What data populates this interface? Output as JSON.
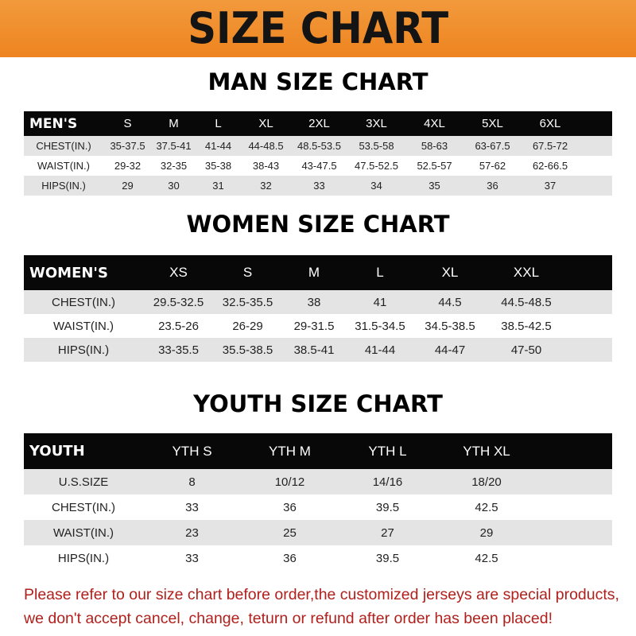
{
  "banner": {
    "title": "SIZE CHART",
    "color": "#ee8420"
  },
  "men": {
    "title": "MAN SIZE CHART",
    "header": [
      "MEN'S",
      "S",
      "M",
      "L",
      "XL",
      "2XL",
      "3XL",
      "4XL",
      "5XL",
      "6XL"
    ],
    "rows": [
      [
        "CHEST(IN.)",
        "35-37.5",
        "37.5-41",
        "41-44",
        "44-48.5",
        "48.5-53.5",
        "53.5-58",
        "58-63",
        "63-67.5",
        "67.5-72"
      ],
      [
        "WAIST(IN.)",
        "29-32",
        "32-35",
        "35-38",
        "38-43",
        "43-47.5",
        "47.5-52.5",
        "52.5-57",
        "57-62",
        "62-66.5"
      ],
      [
        "HIPS(IN.)",
        "29",
        "30",
        "31",
        "32",
        "33",
        "34",
        "35",
        "36",
        "37"
      ]
    ]
  },
  "women": {
    "title": "WOMEN SIZE CHART",
    "header": [
      "WOMEN'S",
      "XS",
      "S",
      "M",
      "L",
      "XL",
      "XXL"
    ],
    "rows": [
      [
        "CHEST(IN.)",
        "29.5-32.5",
        "32.5-35.5",
        "38",
        "41",
        "44.5",
        "44.5-48.5"
      ],
      [
        "WAIST(IN.)",
        "23.5-26",
        "26-29",
        "29-31.5",
        "31.5-34.5",
        "34.5-38.5",
        "38.5-42.5"
      ],
      [
        "HIPS(IN.)",
        "33-35.5",
        "35.5-38.5",
        "38.5-41",
        "41-44",
        "44-47",
        "47-50"
      ]
    ]
  },
  "youth": {
    "title": "YOUTH SIZE CHART",
    "header": [
      "YOUTH",
      "YTH S",
      "YTH M",
      "YTH L",
      "YTH XL"
    ],
    "rows": [
      [
        "U.S.SIZE",
        "8",
        "10/12",
        "14/16",
        "18/20"
      ],
      [
        "CHEST(IN.)",
        "33",
        "36",
        "39.5",
        "42.5"
      ],
      [
        "WAIST(IN.)",
        "23",
        "25",
        "27",
        "29"
      ],
      [
        "HIPS(IN.)",
        "33",
        "36",
        "39.5",
        "42.5"
      ]
    ]
  },
  "notice": {
    "line1": "Please refer to our size chart before order,the customized jerseys are special products,",
    "line2": "we don't accept cancel, change, teturn or refund after order has been placed!",
    "color": "#b0201c"
  }
}
